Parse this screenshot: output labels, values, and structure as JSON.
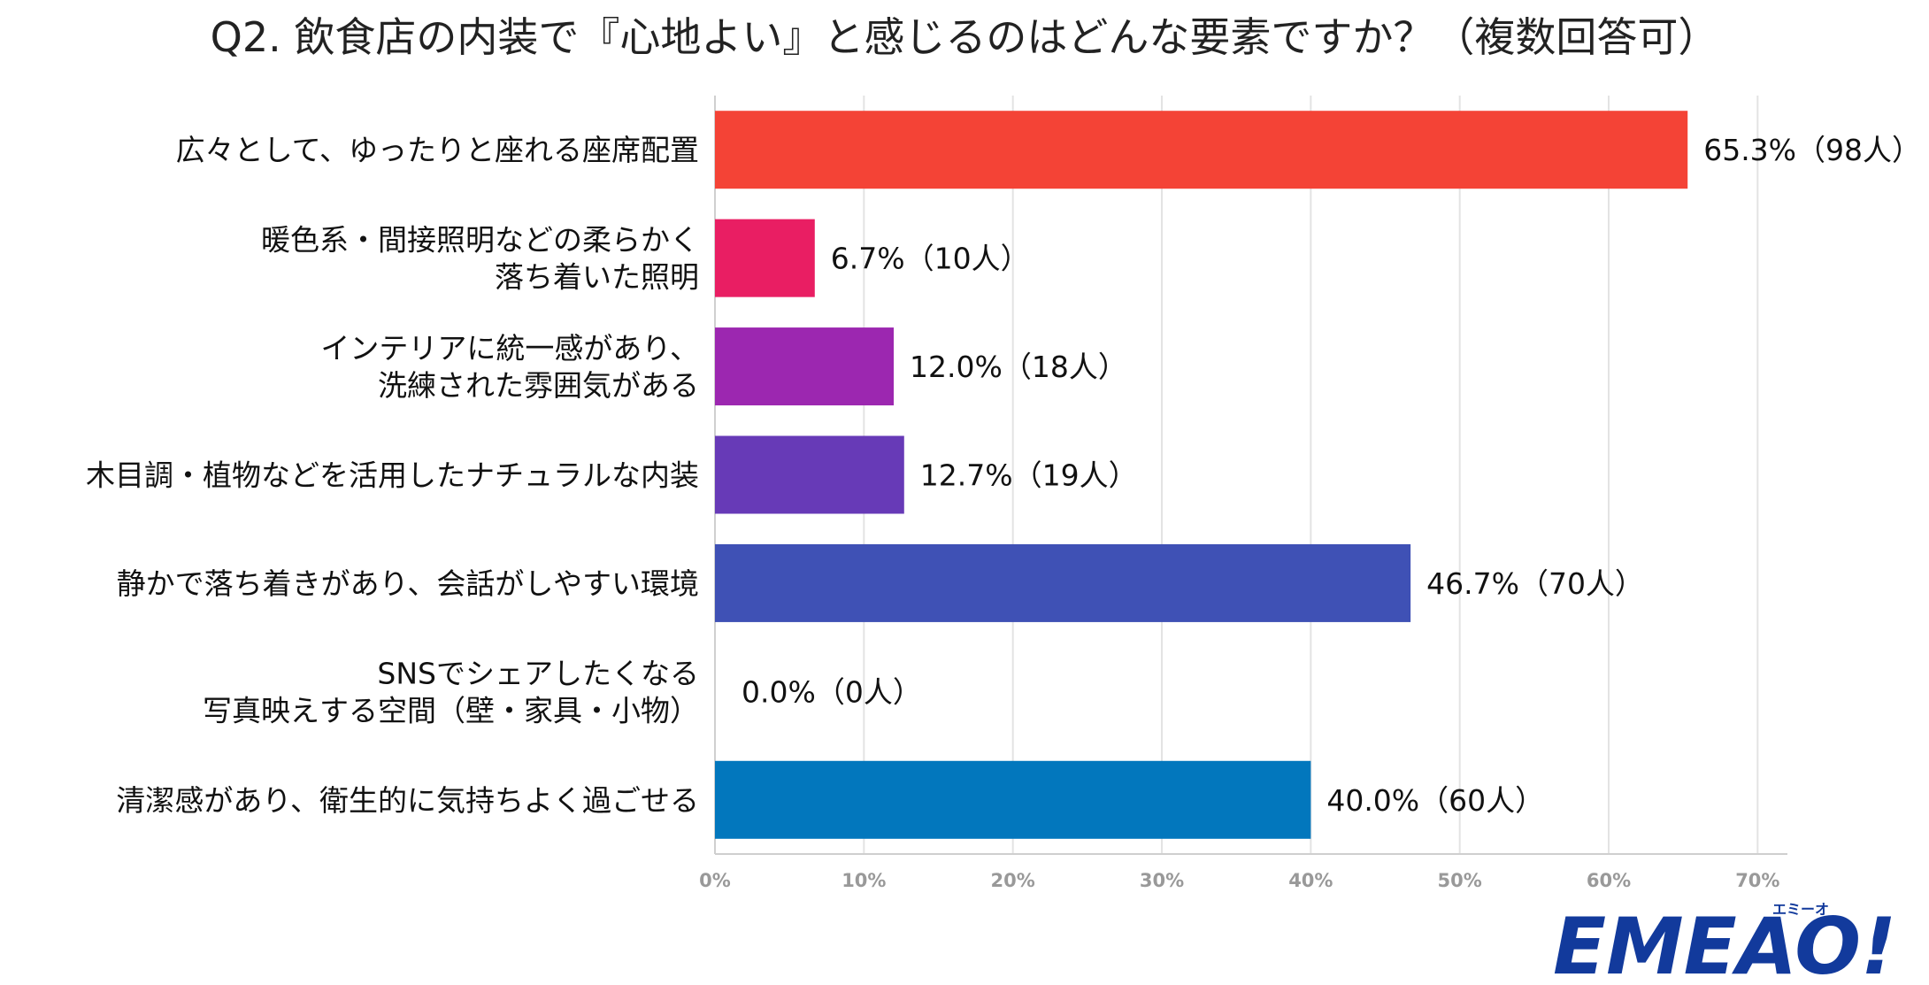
{
  "chart_data": {
    "type": "bar",
    "orientation": "horizontal",
    "title": "Q2. 飲食店の内装で『心地よい』と感じるのはどんな要素ですか？（複数回答可）",
    "categories": [
      [
        "広々として、ゆったりと座れる座席配置"
      ],
      [
        "暖色系・間接照明などの柔らかく",
        "落ち着いた照明"
      ],
      [
        "インテリアに統一感があり、",
        "洗練された雰囲気がある"
      ],
      [
        "木目調・植物などを活用したナチュラルな内装"
      ],
      [
        "静かで落ち着きがあり、会話がしやすい環境"
      ],
      [
        "SNSでシェアしたくなる",
        "写真映えする空間（壁・家具・小物）"
      ],
      [
        "清潔感があり、衛生的に気持ちよく過ごせる"
      ]
    ],
    "values": [
      65.3,
      6.7,
      12.0,
      12.7,
      46.7,
      0.0,
      40.0
    ],
    "value_labels": [
      "65.3%（98人）",
      "6.7%（10人）",
      "12.0%（18人）",
      "12.7%（19人）",
      "46.7%（70人）",
      "0.0%（0人）",
      "40.0%（60人）"
    ],
    "colors": [
      "#f44336",
      "#e91e63",
      "#9c27b0",
      "#673ab7",
      "#3f51b5",
      "#2196f3",
      "#0277bd"
    ],
    "x_ticks": [
      "0%",
      "10%",
      "20%",
      "30%",
      "40%",
      "50%",
      "60%",
      "70%"
    ],
    "xlim": [
      0,
      72
    ],
    "grid": true
  },
  "logo": {
    "text": "EMEAO!",
    "subtext": "エミーオ"
  }
}
